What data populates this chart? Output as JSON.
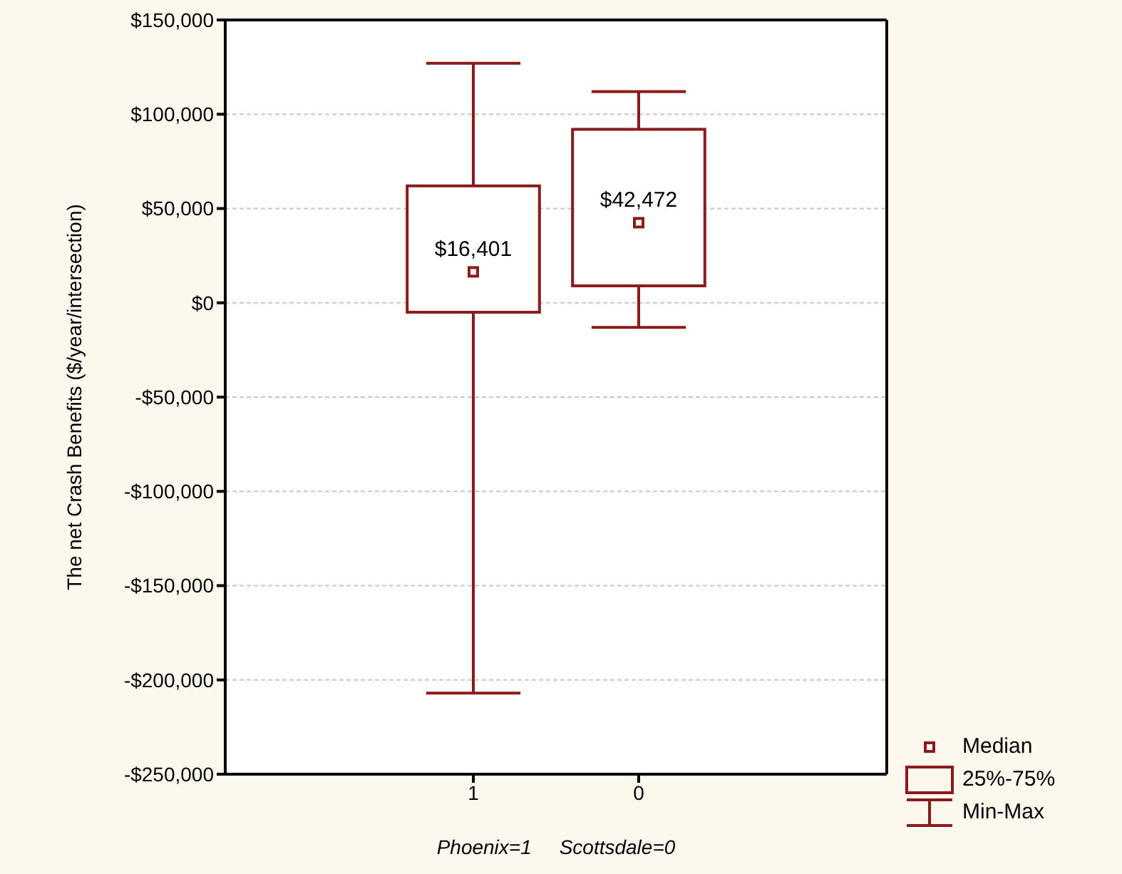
{
  "chart_data": {
    "type": "box",
    "categories": [
      "1",
      "0"
    ],
    "xlabel": "Phoenix=1     Scottsdale=0",
    "ylabel": "The net Crash Benefits ($/year/intersection)",
    "color": "#8b1a1a",
    "boxes": [
      {
        "low": -207000,
        "q1": -5000,
        "median": 16401,
        "q3": 62000,
        "high": 127000
      },
      {
        "low": -13000,
        "q1": 9000,
        "median": 42472,
        "q3": 92000,
        "high": 112000
      }
    ],
    "ylim": [
      -250000,
      150000
    ],
    "yticks": [
      {
        "value": -250000,
        "label": "-$250,000"
      },
      {
        "value": -200000,
        "label": "-$200,000"
      },
      {
        "value": -150000,
        "label": "-$150,000"
      },
      {
        "value": -100000,
        "label": "-$100,000"
      },
      {
        "value": -50000,
        "label": "-$50,000"
      },
      {
        "value": 0,
        "label": "$0"
      },
      {
        "value": 50000,
        "label": "$50,000"
      },
      {
        "value": 100000,
        "label": "$100,000"
      },
      {
        "value": 150000,
        "label": "$150,000"
      }
    ],
    "grid": "y",
    "marker": "square",
    "annotations": [
      {
        "text": "$16,401",
        "x": "1",
        "y": 16401
      },
      {
        "text": "$42,472",
        "x": "0",
        "y": 42472
      },
      "Median",
      "25%-75%",
      "Min-Max"
    ]
  }
}
